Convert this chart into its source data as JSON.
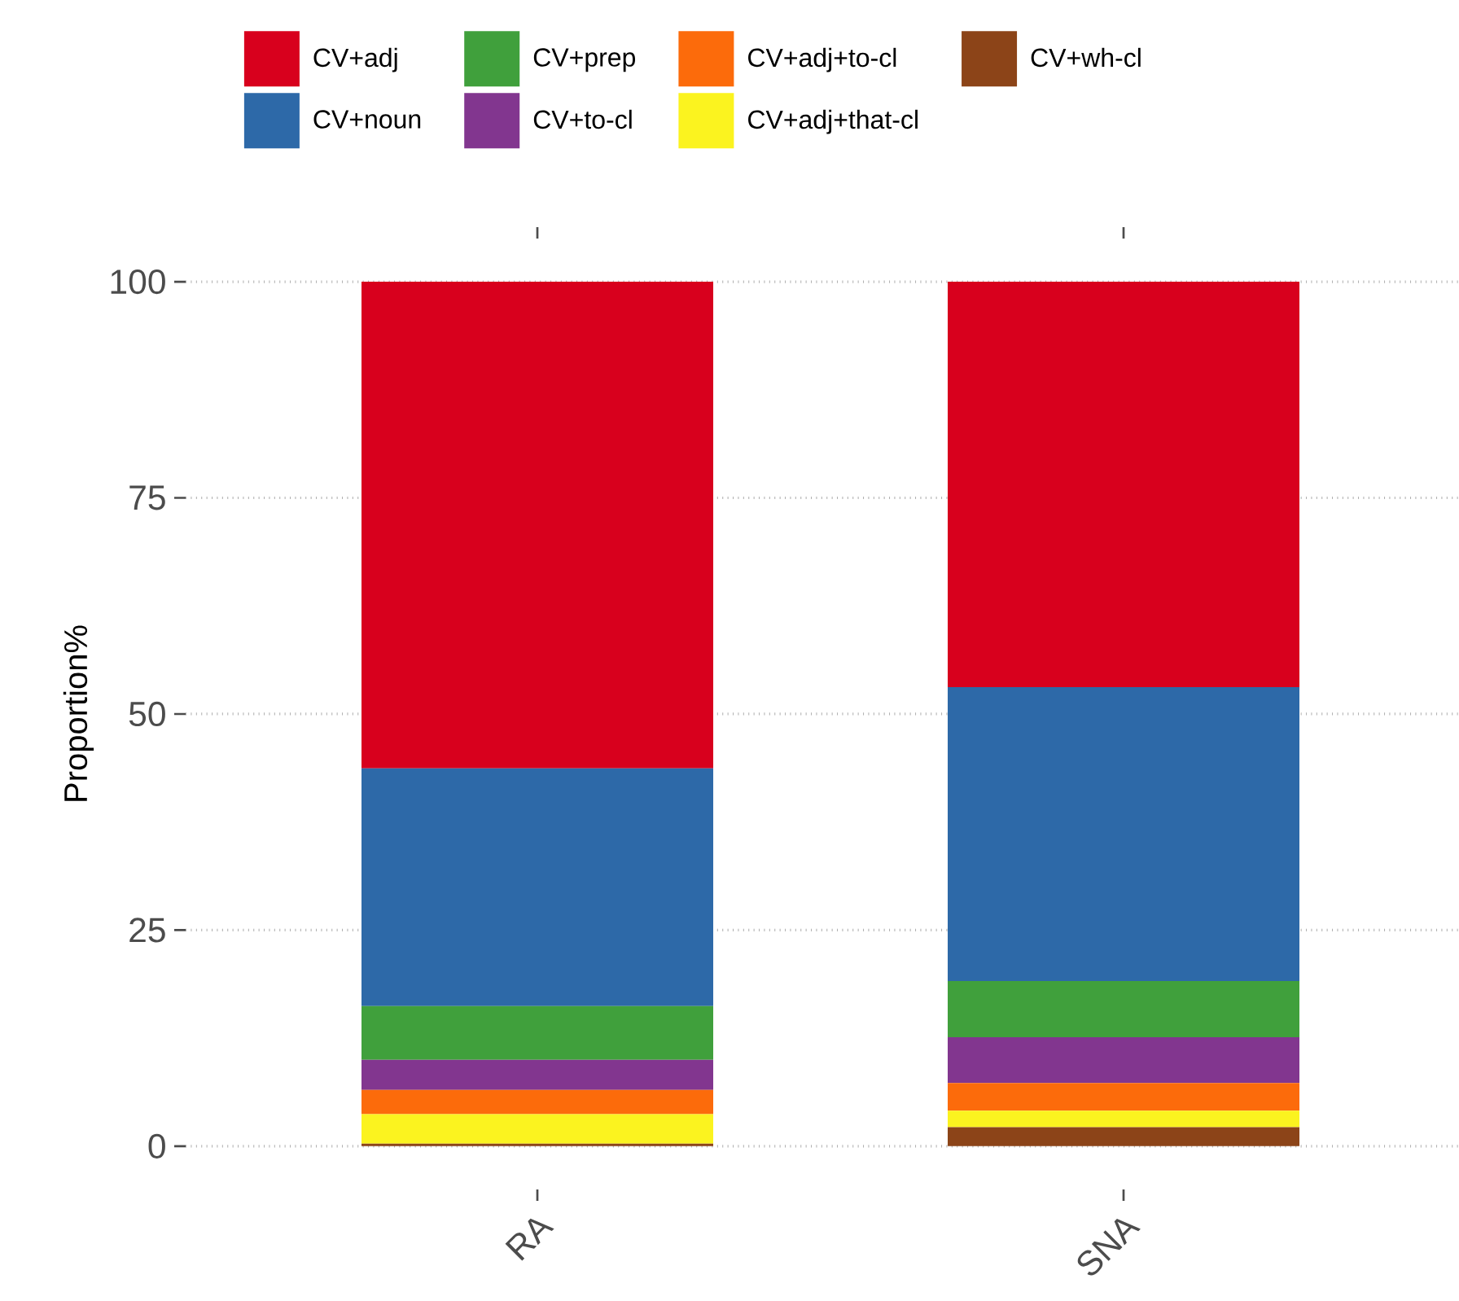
{
  "chart_data": {
    "type": "bar",
    "stacked": true,
    "ylabel": "Proportion%",
    "categories": [
      "RA",
      "SNA"
    ],
    "series": [
      {
        "name": "CV+wh-cl",
        "color": "#8c4418",
        "values": [
          0.3,
          2.2
        ]
      },
      {
        "name": "CV+adj+that-cl",
        "color": "#fbf31f",
        "values": [
          3.4,
          1.9
        ]
      },
      {
        "name": "CV+adj+to-cl",
        "color": "#fc6b0b",
        "values": [
          2.8,
          3.2
        ]
      },
      {
        "name": "CV+to-cl",
        "color": "#82368f",
        "values": [
          3.5,
          5.3
        ]
      },
      {
        "name": "CV+prep",
        "color": "#40a03c",
        "values": [
          6.2,
          6.5
        ]
      },
      {
        "name": "CV+noun",
        "color": "#2d69a8",
        "values": [
          27.5,
          34.0
        ]
      },
      {
        "name": "CV+adj",
        "color": "#d8001d",
        "values": [
          56.3,
          46.9
        ]
      }
    ],
    "ylim": [
      0,
      100
    ],
    "yticks": [
      0,
      25,
      50,
      75,
      100
    ],
    "grid": "y",
    "legend": "top"
  }
}
